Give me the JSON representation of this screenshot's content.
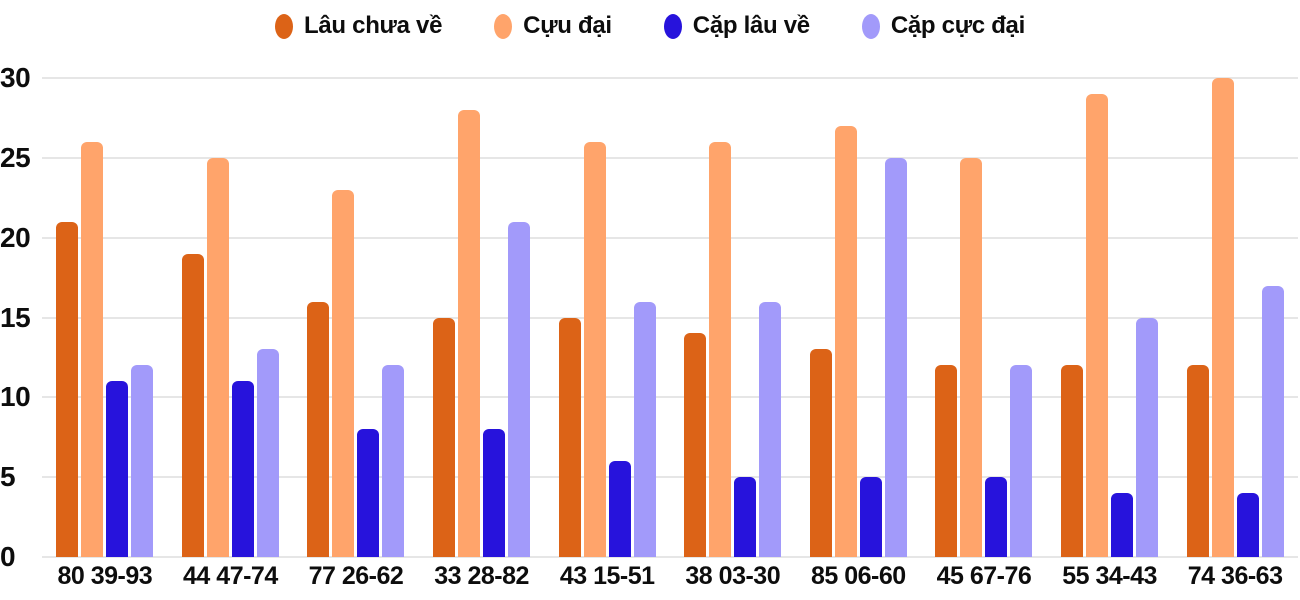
{
  "chart_data": {
    "type": "bar",
    "title": "",
    "xlabel": "",
    "ylabel": "",
    "categories": [
      "80 39-93",
      "44 47-74",
      "77 26-62",
      "33 28-82",
      "43 15-51",
      "38 03-30",
      "85 06-60",
      "45 67-76",
      "55 34-43",
      "74 36-63"
    ],
    "series": [
      {
        "name": "Lâu chưa về",
        "color": "#dc6317",
        "values": [
          21,
          19,
          16,
          15,
          15,
          14,
          13,
          12,
          12,
          12
        ]
      },
      {
        "name": "Cựu đại",
        "color": "#ffa46b",
        "values": [
          26,
          25,
          23,
          28,
          26,
          26,
          27,
          25,
          29,
          30
        ]
      },
      {
        "name": "Cặp lâu về",
        "color": "#2713dc",
        "values": [
          11,
          11,
          8,
          8,
          6,
          5,
          5,
          5,
          4,
          4
        ]
      },
      {
        "name": "Cặp cực đại",
        "color": "#a29afa",
        "values": [
          12,
          13,
          12,
          21,
          16,
          16,
          25,
          12,
          15,
          17
        ]
      }
    ],
    "ylim": [
      0,
      30
    ],
    "yticks": [
      0,
      5,
      10,
      15,
      20,
      25,
      30
    ],
    "grid": true,
    "legend_position": "top"
  },
  "colors": {
    "background": "#ffffff",
    "grid": "#e6e6e6",
    "text": "#0d0d0d"
  }
}
